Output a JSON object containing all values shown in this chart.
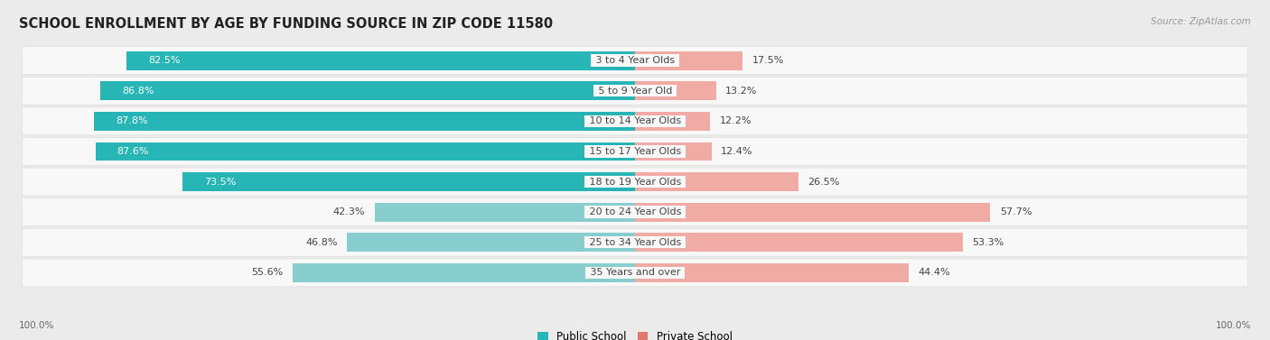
{
  "title": "SCHOOL ENROLLMENT BY AGE BY FUNDING SOURCE IN ZIP CODE 11580",
  "source": "Source: ZipAtlas.com",
  "categories": [
    "3 to 4 Year Olds",
    "5 to 9 Year Old",
    "10 to 14 Year Olds",
    "15 to 17 Year Olds",
    "18 to 19 Year Olds",
    "20 to 24 Year Olds",
    "25 to 34 Year Olds",
    "35 Years and over"
  ],
  "public_values": [
    82.5,
    86.8,
    87.8,
    87.6,
    73.5,
    42.3,
    46.8,
    55.6
  ],
  "private_values": [
    17.5,
    13.2,
    12.2,
    12.4,
    26.5,
    57.7,
    53.3,
    44.4
  ],
  "public_color_high": "#28b5b5",
  "public_color_low": "#88cece",
  "private_color_high": "#e07870",
  "private_color_low": "#f0aca4",
  "bg_color": "#ebebeb",
  "bar_bg": "#f8f8f8",
  "label_color_white": "#ffffff",
  "label_color_dark": "#444444",
  "title_fontsize": 10.5,
  "source_fontsize": 7.5,
  "bar_label_fontsize": 8,
  "cat_label_fontsize": 8,
  "legend_fontsize": 8.5,
  "axis_label_fontsize": 7.5,
  "pub_white_threshold": 60,
  "priv_white_threshold": 100
}
